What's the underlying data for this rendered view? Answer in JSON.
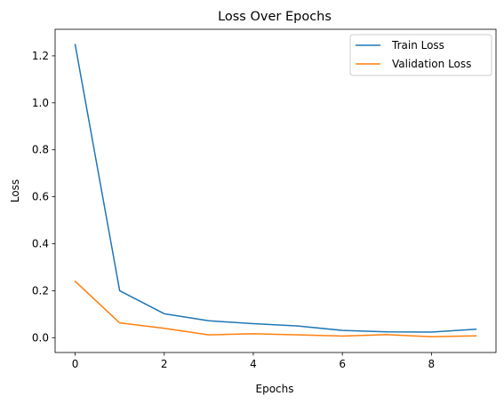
{
  "chart_data": {
    "type": "line",
    "title": "Loss Over Epochs",
    "xlabel": "Epochs",
    "ylabel": "Loss",
    "xlim": [
      -0.45,
      9.45
    ],
    "ylim": [
      -0.063,
      1.313
    ],
    "xticks": [
      0,
      2,
      4,
      6,
      8
    ],
    "yticks": [
      0.0,
      0.2,
      0.4,
      0.6,
      0.8,
      1.0,
      1.2
    ],
    "x": [
      0,
      1,
      2,
      3,
      4,
      5,
      6,
      7,
      8,
      9
    ],
    "grid": false,
    "legend_position": "top-right",
    "series": [
      {
        "name": "Train Loss",
        "color": "#1f77b4",
        "values": [
          1.248,
          0.2,
          0.102,
          0.072,
          0.06,
          0.05,
          0.031,
          0.025,
          0.024,
          0.036
        ]
      },
      {
        "name": "Validation Loss",
        "color": "#ff7f0e",
        "values": [
          0.24,
          0.063,
          0.04,
          0.012,
          0.017,
          0.012,
          0.007,
          0.013,
          0.004,
          0.008
        ]
      }
    ]
  }
}
